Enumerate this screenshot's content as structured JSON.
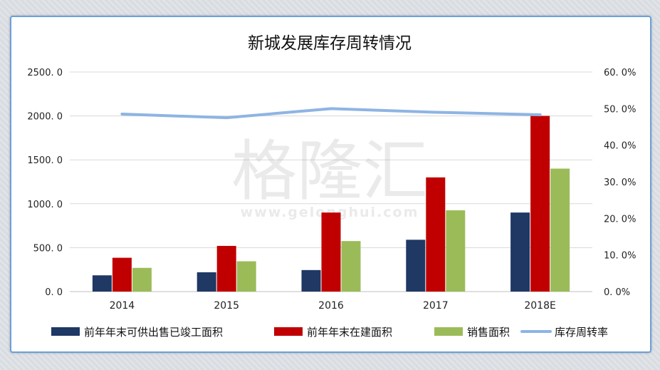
{
  "chart_data": {
    "type": "bar",
    "title": "新城发展库存周转情况",
    "categories": [
      "2014",
      "2015",
      "2016",
      "2017",
      "2018E"
    ],
    "series": [
      {
        "name": "前年年末可供出售已竣工面积",
        "type": "bar",
        "axis": "left",
        "color": "#1f3864",
        "values": [
          185,
          220,
          245,
          590,
          900
        ]
      },
      {
        "name": "前年年末在建面积",
        "type": "bar",
        "axis": "left",
        "color": "#c00000",
        "values": [
          385,
          520,
          900,
          1300,
          2000
        ]
      },
      {
        "name": "销售面积",
        "type": "bar",
        "axis": "left",
        "color": "#9bbb59",
        "values": [
          270,
          345,
          575,
          925,
          1400
        ]
      },
      {
        "name": "库存周转率",
        "type": "line",
        "axis": "right",
        "color": "#8eb4e3",
        "values": [
          48.5,
          47.5,
          50.0,
          49.0,
          48.3
        ]
      }
    ],
    "y_left": {
      "min": 0,
      "max": 2500,
      "ticks": [
        "0. 0",
        "500. 0",
        "1000. 0",
        "1500. 0",
        "2000. 0",
        "2500. 0"
      ]
    },
    "y_right": {
      "min": 0,
      "max": 60,
      "ticks": [
        "0. 0%",
        "10. 0%",
        "20. 0%",
        "30. 0%",
        "40. 0%",
        "50. 0%",
        "60. 0%"
      ]
    },
    "grid": true,
    "legend_position": "bottom",
    "watermark": {
      "text": "格隆汇",
      "subtext": "www.gelonghui.com"
    }
  }
}
